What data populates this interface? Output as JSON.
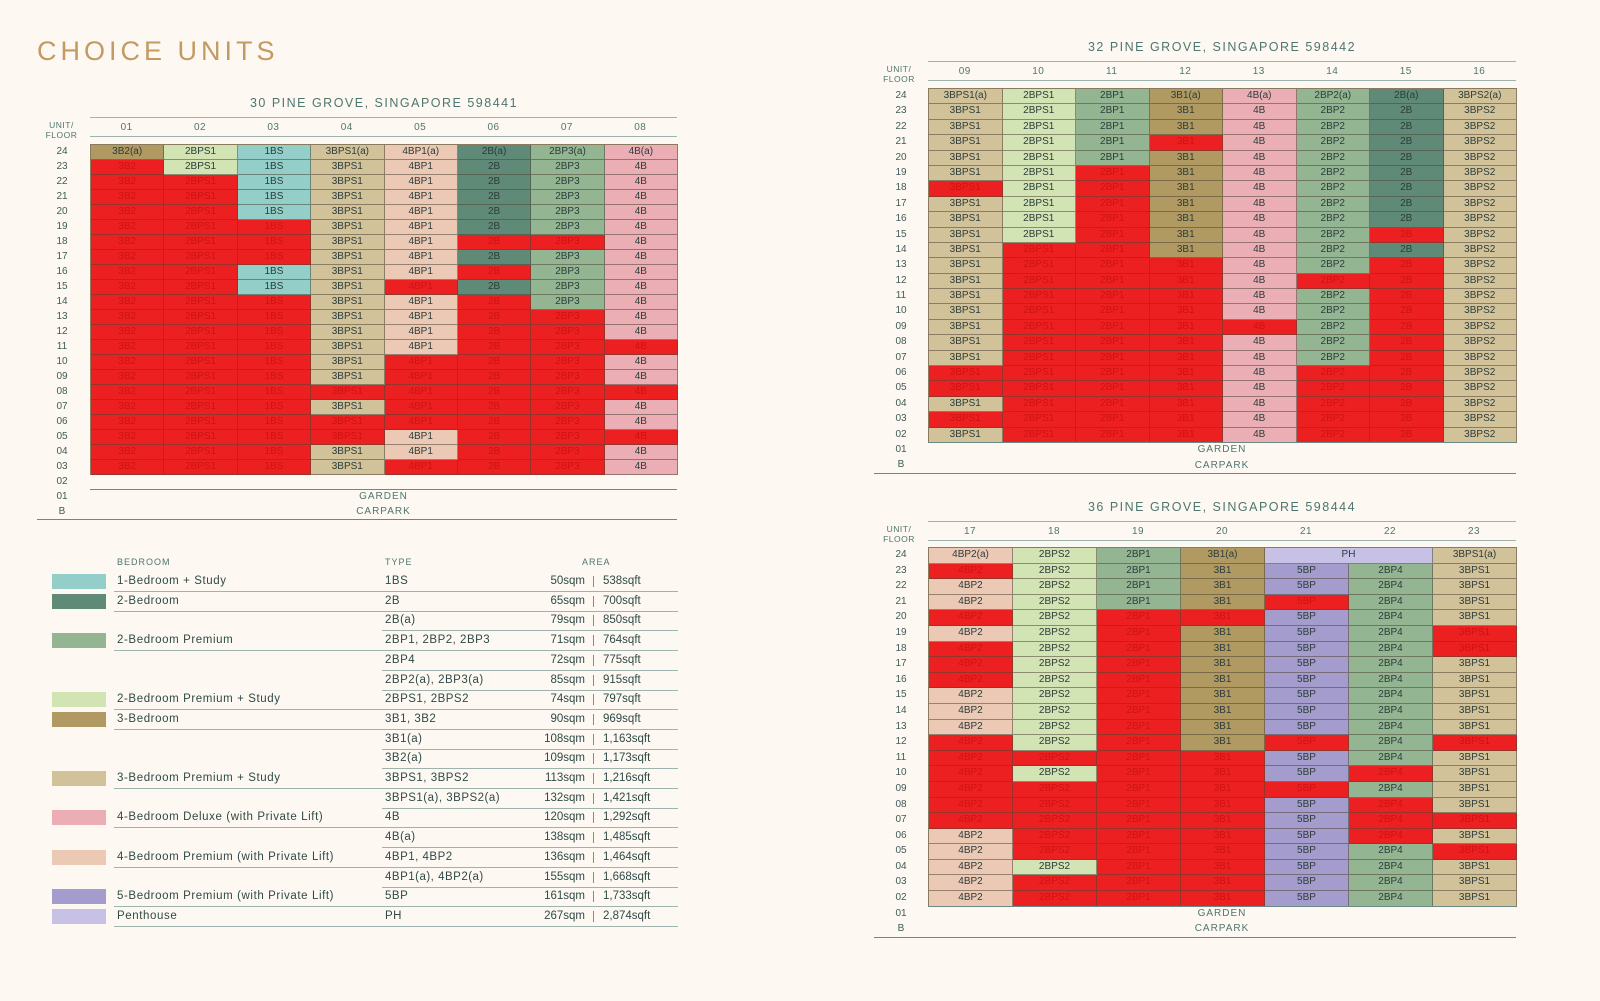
{
  "page_title": "CHOICE UNITS",
  "colors": {
    "1BS": "#93cfc8",
    "2B": "#5f8a78",
    "2BP": "#93b592",
    "2BPS": "#d2e3b4",
    "3B": "#b09a62",
    "3BPS": "#d2c29a",
    "4B": "#ecaeb5",
    "4BP": "#ecc9b5",
    "5BP": "#a49ccd",
    "PH": "#c7c2e5",
    "sold": "#ec2020"
  },
  "labels": {
    "unit_floor": "UNIT/\nFLOOR",
    "garden": "GARDEN",
    "carpark": "CARPARK"
  },
  "block30": {
    "title": "30 PINE GROVE, SINGAPORE 598441",
    "columns": [
      "01",
      "02",
      "03",
      "04",
      "05",
      "06",
      "07",
      "08"
    ],
    "floors": [
      "24",
      "23",
      "22",
      "21",
      "20",
      "19",
      "18",
      "17",
      "16",
      "15",
      "14",
      "13",
      "12",
      "11",
      "10",
      "09",
      "08",
      "07",
      "06",
      "05",
      "04",
      "03",
      "02",
      "01",
      "B"
    ],
    "rows": [
      [
        "3B2(a)",
        "2BPS1",
        "1BS",
        "3BPS1(a)",
        "4BP1(a)",
        "2B(a)",
        "2BP3(a)",
        "4B(a)"
      ],
      [
        "!3B2",
        "2BPS1",
        "1BS",
        "3BPS1",
        "4BP1",
        "2B",
        "2BP3",
        "4B"
      ],
      [
        "!3B2",
        "!2BPS1",
        "1BS",
        "3BPS1",
        "4BP1",
        "2B",
        "2BP3",
        "4B"
      ],
      [
        "!3B2",
        "!2BPS1",
        "1BS",
        "3BPS1",
        "4BP1",
        "2B",
        "2BP3",
        "4B"
      ],
      [
        "!3B2",
        "!2BPS1",
        "1BS",
        "3BPS1",
        "4BP1",
        "2B",
        "2BP3",
        "4B"
      ],
      [
        "!3B2",
        "!2BPS1",
        "!1BS",
        "3BPS1",
        "4BP1",
        "2B",
        "2BP3",
        "4B"
      ],
      [
        "!3B2",
        "!2BPS1",
        "!1BS",
        "3BPS1",
        "4BP1",
        "!2B",
        "!2BP3",
        "4B"
      ],
      [
        "!3B2",
        "!2BPS1",
        "!1BS",
        "3BPS1",
        "4BP1",
        "2B",
        "2BP3",
        "4B"
      ],
      [
        "!3B2",
        "!2BPS1",
        "1BS",
        "3BPS1",
        "4BP1",
        "!2B",
        "2BP3",
        "4B"
      ],
      [
        "!3B2",
        "!2BPS1",
        "1BS",
        "3BPS1",
        "!4BP1",
        "2B",
        "2BP3",
        "4B"
      ],
      [
        "!3B2",
        "!2BPS1",
        "!1BS",
        "3BPS1",
        "4BP1",
        "!2B",
        "2BP3",
        "4B"
      ],
      [
        "!3B2",
        "!2BPS1",
        "!1BS",
        "3BPS1",
        "4BP1",
        "!2B",
        "!2BP3",
        "4B"
      ],
      [
        "!3B2",
        "!2BPS1",
        "!1BS",
        "3BPS1",
        "4BP1",
        "!2B",
        "!2BP3",
        "4B"
      ],
      [
        "!3B2",
        "!2BPS1",
        "!1BS",
        "3BPS1",
        "4BP1",
        "!2B",
        "!2BP3",
        "!4B"
      ],
      [
        "!3B2",
        "!2BPS1",
        "!1BS",
        "3BPS1",
        "!4BP1",
        "!2B",
        "!2BP3",
        "4B"
      ],
      [
        "!3B2",
        "!2BPS1",
        "!1BS",
        "3BPS1",
        "!4BP1",
        "!2B",
        "!2BP3",
        "4B"
      ],
      [
        "!3B2",
        "!2BPS1",
        "!1BS",
        "!3BPS1",
        "!4BP1",
        "!2B",
        "!2BP3",
        "!4B"
      ],
      [
        "!3B2",
        "!2BPS1",
        "!1BS",
        "3BPS1",
        "!4BP1",
        "!2B",
        "!2BP3",
        "4B"
      ],
      [
        "!3B2",
        "!2BPS1",
        "!1BS",
        "!3BPS1",
        "!4BP1",
        "!2B",
        "!2BP3",
        "4B"
      ],
      [
        "!3B2",
        "!2BPS1",
        "!1BS",
        "!3BPS1",
        "4BP1",
        "!2B",
        "!2BP3",
        "!4B"
      ],
      [
        "!3B2",
        "!2BPS1",
        "!1BS",
        "3BPS1",
        "4BP1",
        "!2B",
        "!2BP3",
        "4B"
      ],
      [
        "!3B2",
        "!2BPS1",
        "!1BS",
        "3BPS1",
        "!4BP1",
        "!2B",
        "!2BP3",
        "4B"
      ]
    ]
  },
  "block32": {
    "title": "32 PINE GROVE, SINGAPORE 598442",
    "columns": [
      "09",
      "10",
      "11",
      "12",
      "13",
      "14",
      "15",
      "16"
    ],
    "floors": [
      "24",
      "23",
      "22",
      "21",
      "20",
      "19",
      "18",
      "17",
      "16",
      "15",
      "14",
      "13",
      "12",
      "11",
      "10",
      "09",
      "08",
      "07",
      "06",
      "05",
      "04",
      "03",
      "02",
      "01",
      "B"
    ],
    "rows": [
      [
        "3BPS1(a)",
        "2BPS1",
        "2BP1",
        "3B1(a)",
        "4B(a)",
        "2BP2(a)",
        "2B(a)",
        "3BPS2(a)"
      ],
      [
        "3BPS1",
        "2BPS1",
        "2BP1",
        "3B1",
        "4B",
        "2BP2",
        "2B",
        "3BPS2"
      ],
      [
        "3BPS1",
        "2BPS1",
        "2BP1",
        "3B1",
        "4B",
        "2BP2",
        "2B",
        "3BPS2"
      ],
      [
        "3BPS1",
        "2BPS1",
        "2BP1",
        "!3B1",
        "4B",
        "2BP2",
        "2B",
        "3BPS2"
      ],
      [
        "3BPS1",
        "2BPS1",
        "2BP1",
        "3B1",
        "4B",
        "2BP2",
        "2B",
        "3BPS2"
      ],
      [
        "3BPS1",
        "2BPS1",
        "!2BP1",
        "3B1",
        "4B",
        "2BP2",
        "2B",
        "3BPS2"
      ],
      [
        "!3BPS1",
        "2BPS1",
        "!2BP1",
        "3B1",
        "4B",
        "2BP2",
        "2B",
        "3BPS2"
      ],
      [
        "3BPS1",
        "2BPS1",
        "!2BP1",
        "3B1",
        "4B",
        "2BP2",
        "2B",
        "3BPS2"
      ],
      [
        "3BPS1",
        "2BPS1",
        "!2BP1",
        "3B1",
        "4B",
        "2BP2",
        "2B",
        "3BPS2"
      ],
      [
        "3BPS1",
        "2BPS1",
        "!2BP1",
        "3B1",
        "4B",
        "2BP2",
        "!2B",
        "3BPS2"
      ],
      [
        "3BPS1",
        "!2BPS1",
        "!2BP1",
        "3B1",
        "4B",
        "2BP2",
        "2B",
        "3BPS2"
      ],
      [
        "3BPS1",
        "!2BPS1",
        "!2BP1",
        "!3B1",
        "4B",
        "2BP2",
        "!2B",
        "3BPS2"
      ],
      [
        "3BPS1",
        "!2BPS1",
        "!2BP1",
        "!3B1",
        "4B",
        "!2BP2",
        "!2B",
        "3BPS2"
      ],
      [
        "3BPS1",
        "!2BPS1",
        "!2BP1",
        "!3B1",
        "4B",
        "2BP2",
        "!2B",
        "3BPS2"
      ],
      [
        "3BPS1",
        "!2BPS1",
        "!2BP1",
        "!3B1",
        "4B",
        "2BP2",
        "!2B",
        "3BPS2"
      ],
      [
        "3BPS1",
        "!2BPS1",
        "!2BP1",
        "!3B1",
        "!4B",
        "2BP2",
        "!2B",
        "3BPS2"
      ],
      [
        "3BPS1",
        "!2BPS1",
        "!2BP1",
        "!3B1",
        "4B",
        "2BP2",
        "!2B",
        "3BPS2"
      ],
      [
        "3BPS1",
        "!2BPS1",
        "!2BP1",
        "!3B1",
        "4B",
        "2BP2",
        "!2B",
        "3BPS2"
      ],
      [
        "!3BPS1",
        "!2BPS1",
        "!2BP1",
        "!3B1",
        "4B",
        "!2BP2",
        "!2B",
        "3BPS2"
      ],
      [
        "!3BPS1",
        "!2BPS1",
        "!2BP1",
        "!3B1",
        "4B",
        "!2BP2",
        "!2B",
        "3BPS2"
      ],
      [
        "3BPS1",
        "!2BPS1",
        "!2BP1",
        "!3B1",
        "4B",
        "!2BP2",
        "!2B",
        "3BPS2"
      ],
      [
        "!3BPS1",
        "!2BPS1",
        "!2BP1",
        "!3B1",
        "4B",
        "!2BP2",
        "!2B",
        "3BPS2"
      ],
      [
        "3BPS1",
        "!2BPS1",
        "!2BP1",
        "!3B1",
        "4B",
        "!2BP2",
        "!2B",
        "3BPS2"
      ]
    ]
  },
  "block36": {
    "title": "36 PINE GROVE, SINGAPORE 598444",
    "columns": [
      "17",
      "18",
      "19",
      "20",
      "21",
      "22",
      "23"
    ],
    "floors": [
      "24",
      "23",
      "22",
      "21",
      "20",
      "19",
      "18",
      "17",
      "16",
      "15",
      "14",
      "13",
      "12",
      "11",
      "10",
      "09",
      "08",
      "07",
      "06",
      "05",
      "04",
      "03",
      "02",
      "01",
      "B"
    ],
    "top_row": [
      "4BP2(a)",
      "2BPS2",
      "2BP1",
      "3B1(a)",
      "PH",
      "3BPS1(a)"
    ],
    "rows": [
      [
        "!4BP2",
        "2BPS2",
        "2BP1",
        "3B1",
        "5BP",
        "2BP4",
        "3BPS1"
      ],
      [
        "4BP2",
        "2BPS2",
        "2BP1",
        "3B1",
        "5BP",
        "2BP4",
        "3BPS1"
      ],
      [
        "4BP2",
        "2BPS2",
        "2BP1",
        "3B1",
        "!5BP",
        "2BP4",
        "3BPS1"
      ],
      [
        "!4BP2",
        "2BPS2",
        "!2BP1",
        "!3B1",
        "5BP",
        "2BP4",
        "3BPS1"
      ],
      [
        "4BP2",
        "2BPS2",
        "!2BP1",
        "3B1",
        "5BP",
        "2BP4",
        "!3BPS1"
      ],
      [
        "!4BP2",
        "2BPS2",
        "!2BP1",
        "3B1",
        "5BP",
        "2BP4",
        "!3BPS1"
      ],
      [
        "!4BP2",
        "2BPS2",
        "!2BP1",
        "3B1",
        "5BP",
        "2BP4",
        "3BPS1"
      ],
      [
        "!4BP2",
        "2BPS2",
        "!2BP1",
        "3B1",
        "5BP",
        "2BP4",
        "3BPS1"
      ],
      [
        "4BP2",
        "2BPS2",
        "!2BP1",
        "3B1",
        "5BP",
        "2BP4",
        "3BPS1"
      ],
      [
        "4BP2",
        "2BPS2",
        "!2BP1",
        "3B1",
        "5BP",
        "2BP4",
        "3BPS1"
      ],
      [
        "4BP2",
        "2BPS2",
        "!2BP1",
        "3B1",
        "5BP",
        "2BP4",
        "3BPS1"
      ],
      [
        "!4BP2",
        "2BPS2",
        "!2BP1",
        "3B1",
        "!5BP",
        "2BP4",
        "!3BPS1"
      ],
      [
        "!4BP2",
        "!2BPS2",
        "!2BP1",
        "!3B1",
        "5BP",
        "2BP4",
        "3BPS1"
      ],
      [
        "!4BP2",
        "2BPS2",
        "!2BP1",
        "!3B1",
        "5BP",
        "!2BP4",
        "3BPS1"
      ],
      [
        "!4BP2",
        "!2BPS2",
        "!2BP1",
        "!3B1",
        "!5BP",
        "2BP4",
        "3BPS1"
      ],
      [
        "!4BP2",
        "!2BPS2",
        "!2BP1",
        "!3B1",
        "5BP",
        "!2BP4",
        "3BPS1"
      ],
      [
        "!4BP2",
        "!2BPS2",
        "!2BP1",
        "!3B1",
        "5BP",
        "!2BP4",
        "!3BPS1"
      ],
      [
        "4BP2",
        "!2BPS2",
        "!2BP1",
        "!3B1",
        "5BP",
        "!2BP4",
        "3BPS1"
      ],
      [
        "4BP2",
        "!2BPS2",
        "!2BP1",
        "!3B1",
        "5BP",
        "2BP4",
        "!3BPS1"
      ],
      [
        "4BP2",
        "2BPS2",
        "!2BP1",
        "!3B1",
        "5BP",
        "2BP4",
        "3BPS1"
      ],
      [
        "4BP2",
        "!2BPS2",
        "!2BP1",
        "!3B1",
        "5BP",
        "2BP4",
        "3BPS1"
      ],
      [
        "4BP2",
        "!2BPS2",
        "!2BP1",
        "!3B1",
        "5BP",
        "2BP4",
        "3BPS1"
      ]
    ]
  },
  "legend": {
    "headers": {
      "bedroom": "BEDROOM",
      "type": "TYPE",
      "area": "AREA"
    },
    "rows": [
      {
        "swatch": "1BS",
        "name": "1-Bedroom + Study",
        "type": "1BS",
        "sqm": "50sqm",
        "sqft": "538sqft"
      },
      {
        "swatch": "2B",
        "name": "2-Bedroom",
        "type": "2B",
        "sqm": "65sqm",
        "sqft": "700sqft"
      },
      {
        "swatch": "",
        "name": "",
        "type": "2B(a)",
        "sqm": "79sqm",
        "sqft": "850sqft"
      },
      {
        "swatch": "2BP",
        "name": "2-Bedroom Premium",
        "type": "2BP1, 2BP2, 2BP3",
        "sqm": "71sqm",
        "sqft": "764sqft"
      },
      {
        "swatch": "",
        "name": "",
        "type": "2BP4",
        "sqm": "72sqm",
        "sqft": "775sqft"
      },
      {
        "swatch": "",
        "name": "",
        "type": "2BP2(a), 2BP3(a)",
        "sqm": "85sqm",
        "sqft": "915sqft"
      },
      {
        "swatch": "2BPS",
        "name": "2-Bedroom Premium + Study",
        "type": "2BPS1, 2BPS2",
        "sqm": "74sqm",
        "sqft": "797sqft"
      },
      {
        "swatch": "3B",
        "name": "3-Bedroom",
        "type": "3B1, 3B2",
        "sqm": "90sqm",
        "sqft": "969sqft"
      },
      {
        "swatch": "",
        "name": "",
        "type": "3B1(a)",
        "sqm": "108sqm",
        "sqft": "1,163sqft"
      },
      {
        "swatch": "",
        "name": "",
        "type": "3B2(a)",
        "sqm": "109sqm",
        "sqft": "1,173sqft"
      },
      {
        "swatch": "3BPS",
        "name": "3-Bedroom Premium + Study",
        "type": "3BPS1, 3BPS2",
        "sqm": "113sqm",
        "sqft": "1,216sqft"
      },
      {
        "swatch": "",
        "name": "",
        "type": "3BPS1(a), 3BPS2(a)",
        "sqm": "132sqm",
        "sqft": "1,421sqft"
      },
      {
        "swatch": "4B",
        "name": "4-Bedroom Deluxe (with Private Lift)",
        "type": "4B",
        "sqm": "120sqm",
        "sqft": "1,292sqft"
      },
      {
        "swatch": "",
        "name": "",
        "type": "4B(a)",
        "sqm": "138sqm",
        "sqft": "1,485sqft"
      },
      {
        "swatch": "4BP",
        "name": "4-Bedroom Premium (with Private Lift)",
        "type": "4BP1, 4BP2",
        "sqm": "136sqm",
        "sqft": "1,464sqft"
      },
      {
        "swatch": "",
        "name": "",
        "type": "4BP1(a), 4BP2(a)",
        "sqm": "155sqm",
        "sqft": "1,668sqft"
      },
      {
        "swatch": "5BP",
        "name": "5-Bedroom Premium (with Private Lift)",
        "type": "5BP",
        "sqm": "161sqm",
        "sqft": "1,733sqft"
      },
      {
        "swatch": "PH",
        "name": "Penthouse",
        "type": "PH",
        "sqm": "267sqm",
        "sqft": "2,874sqft"
      }
    ]
  }
}
